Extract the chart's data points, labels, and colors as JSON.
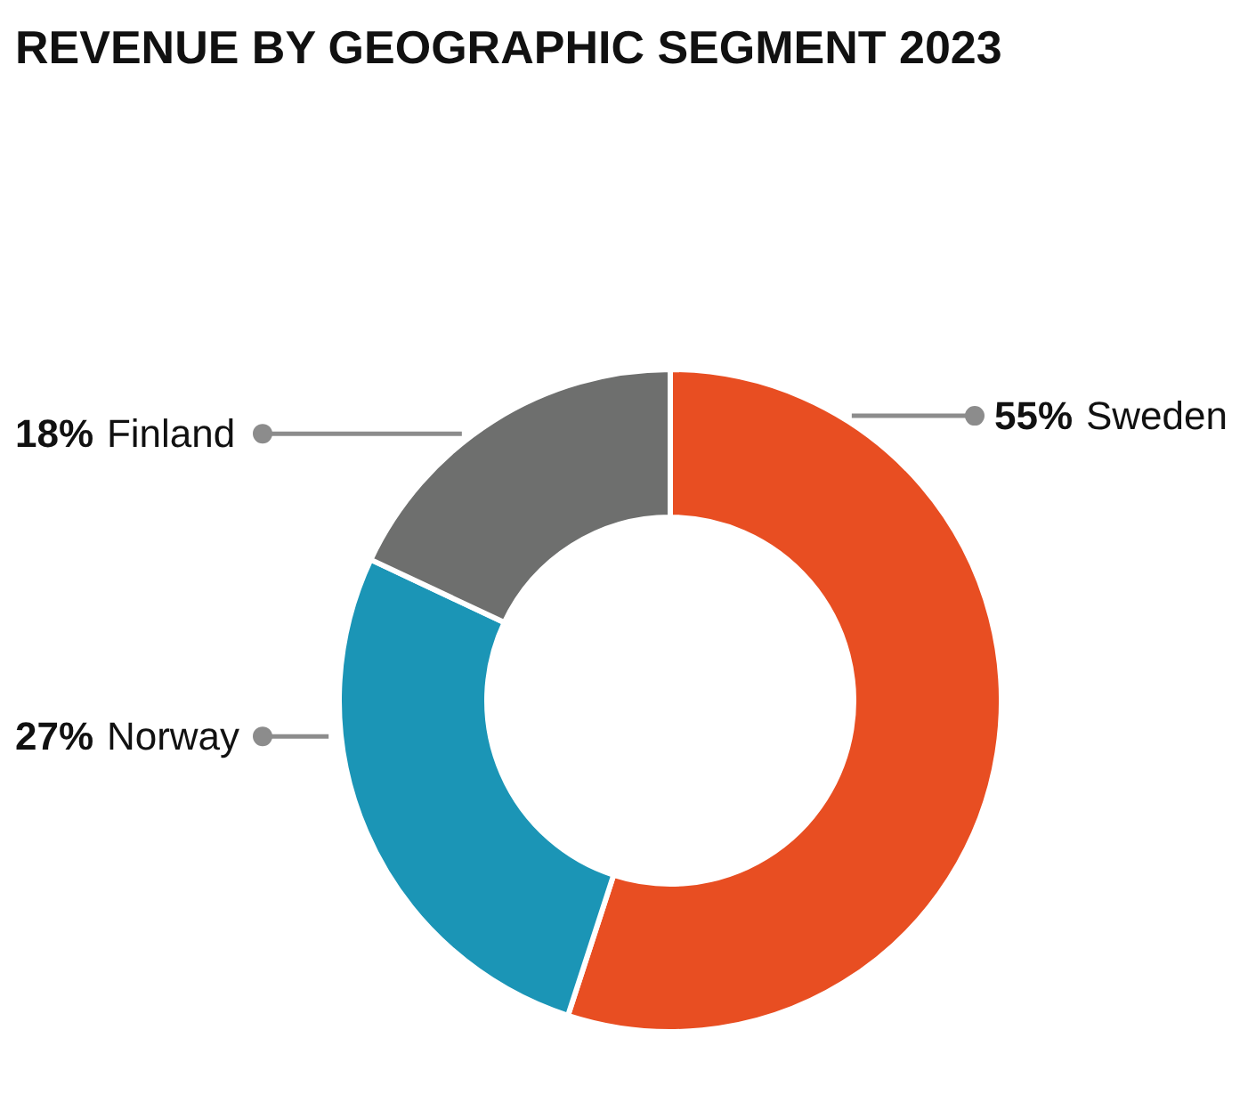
{
  "chart_data": {
    "type": "donut",
    "title": "REVENUE BY GEOGRAPHIC SEGMENT 2023",
    "categories": [
      "Sweden",
      "Norway",
      "Finland"
    ],
    "values": [
      55,
      27,
      18
    ],
    "colors": [
      "#e84e22",
      "#1b95b6",
      "#6e6f6e"
    ],
    "value_labels": [
      "55%",
      "27%",
      "18%"
    ]
  }
}
